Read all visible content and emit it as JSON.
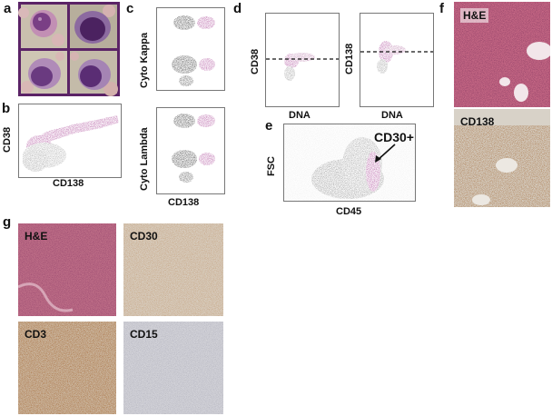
{
  "panel_labels": {
    "a": "a",
    "b": "b",
    "c": "c",
    "d": "d",
    "e": "e",
    "f": "f",
    "g": "g"
  },
  "panel_b": {
    "y_label": "CD38",
    "x_label": "CD138"
  },
  "panel_c": {
    "top_y_label": "Cyto Kappa",
    "bottom_y_label": "Cyto Lambda",
    "x_label": "CD138"
  },
  "panel_d": {
    "left_y_label": "CD38",
    "left_x_label": "DNA",
    "right_y_label": "CD138",
    "right_x_label": "DNA"
  },
  "panel_e": {
    "y_label": "FSC",
    "x_label": "CD45",
    "annotation": "CD30+"
  },
  "panel_f": {
    "top_label": "H&E",
    "bottom_label": "CD138"
  },
  "panel_g": {
    "tl_label": "H&E",
    "tr_label": "CD30",
    "bl_label": "CD3",
    "br_label": "CD15"
  },
  "colors": {
    "magenta": "#a0308a",
    "gray": "#9a9a9a",
    "black": "#151515",
    "frame_purple": "#5b2366",
    "he_pink": "#c86a86",
    "ihc_brown": "#9a5a22",
    "slide_bg": "#d8d2c8"
  }
}
